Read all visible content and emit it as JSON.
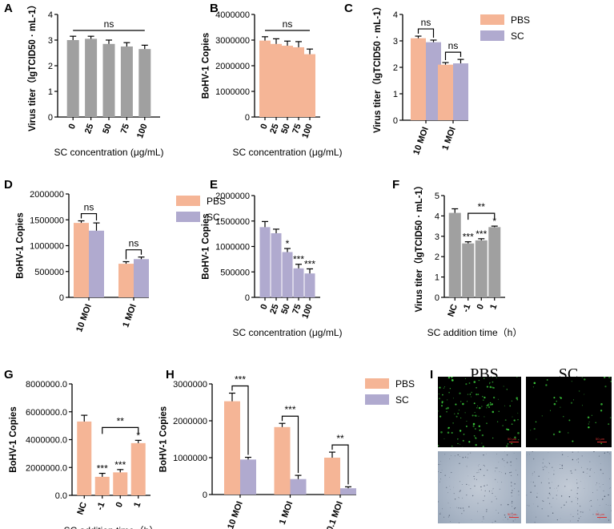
{
  "chart_data": [
    {
      "panel": "A",
      "type": "bar",
      "ylabel": "Virus titer（lgTCID50 · mL-1）",
      "xlabel": "SC concentration (μg/mL)",
      "categories": [
        "0",
        "25",
        "50",
        "75",
        "100"
      ],
      "values": [
        3.0,
        3.05,
        2.85,
        2.75,
        2.65
      ],
      "errors": [
        0.15,
        0.1,
        0.15,
        0.15,
        0.15
      ],
      "ylim": [
        0,
        4
      ],
      "yticks": [
        "0",
        "1",
        "2",
        "3",
        "4"
      ],
      "color": "#a0a0a0",
      "annotations": [
        {
          "text": "ns",
          "from": 0,
          "to": 4
        }
      ]
    },
    {
      "panel": "B",
      "type": "bar",
      "ylabel": "BoHV-1 Copies",
      "xlabel": "SC concentration (μg/mL)",
      "categories": [
        "0",
        "25",
        "50",
        "75",
        "100"
      ],
      "values": [
        2980000,
        2850000,
        2780000,
        2720000,
        2450000
      ],
      "errors": [
        150000,
        200000,
        180000,
        220000,
        200000
      ],
      "ylim": [
        0,
        4000000
      ],
      "yticks": [
        "0",
        "1000000",
        "2000000",
        "3000000",
        "4000000"
      ],
      "color": "#f5b596",
      "annotations": [
        {
          "text": "ns",
          "from": 0,
          "to": 4
        }
      ]
    },
    {
      "panel": "C",
      "type": "bar",
      "ylabel": "Virus titer（lgTCID50 · mL-1）",
      "categories": [
        "10 MOI",
        "1 MOI"
      ],
      "series": [
        {
          "name": "PBS",
          "color": "#f5b596",
          "values": [
            3.1,
            2.1
          ],
          "errors": [
            0.08,
            0.08
          ]
        },
        {
          "name": "SC",
          "color": "#b0aacf",
          "values": [
            2.95,
            2.15
          ],
          "errors": [
            0.08,
            0.15
          ]
        }
      ],
      "ylim": [
        0,
        4
      ],
      "yticks": [
        "0",
        "1",
        "2",
        "3",
        "4"
      ],
      "annotations": [
        {
          "text": "ns",
          "group": 0
        },
        {
          "text": "ns",
          "group": 1
        }
      ]
    },
    {
      "panel": "D",
      "type": "bar",
      "ylabel": "BoHV-1 Copies",
      "categories": [
        "10 MOI",
        "1 MOI"
      ],
      "series": [
        {
          "name": "PBS",
          "color": "#f5b596",
          "values": [
            1440000,
            650000
          ],
          "errors": [
            40000,
            40000
          ]
        },
        {
          "name": "SC",
          "color": "#b0aacf",
          "values": [
            1290000,
            740000
          ],
          "errors": [
            150000,
            40000
          ]
        }
      ],
      "ylim": [
        0,
        2000000
      ],
      "yticks": [
        "0",
        "500000",
        "1000000",
        "1500000",
        "2000000"
      ],
      "annotations": [
        {
          "text": "ns",
          "group": 0
        },
        {
          "text": "ns",
          "group": 1
        }
      ]
    },
    {
      "panel": "E",
      "type": "bar",
      "ylabel": "BoHV-1 Copies",
      "xlabel": "SC concentration (μg/mL)",
      "categories": [
        "0",
        "25",
        "50",
        "75",
        "100"
      ],
      "values": [
        1380000,
        1260000,
        890000,
        570000,
        470000
      ],
      "errors": [
        110000,
        80000,
        70000,
        80000,
        90000
      ],
      "stars": [
        "",
        "",
        "*",
        "***",
        "***"
      ],
      "ylim": [
        0,
        2000000
      ],
      "yticks": [
        "0",
        "500000",
        "1000000",
        "1500000",
        "2000000"
      ],
      "color": "#b0aacf"
    },
    {
      "panel": "F",
      "type": "bar",
      "ylabel": "Virus titer（lgTCID50 · mL-1）",
      "xlabel": "SC addition time（h）",
      "categories": [
        "NC",
        "-1",
        "0",
        "1"
      ],
      "values": [
        4.15,
        2.65,
        2.8,
        3.45
      ],
      "errors": [
        0.2,
        0.08,
        0.08,
        0.05
      ],
      "stars": [
        "",
        "***",
        "***",
        "*"
      ],
      "ylim": [
        0,
        5
      ],
      "yticks": [
        "0",
        "1",
        "2",
        "3",
        "4",
        "5"
      ],
      "color": "#a0a0a0",
      "annotations": [
        {
          "text": "**",
          "from": 1,
          "to": 3
        }
      ]
    },
    {
      "panel": "G",
      "type": "bar",
      "ylabel": "BoHV-1 Copies",
      "xlabel": "SC addition time（h）",
      "categories": [
        "NC",
        "-1",
        "0",
        "1"
      ],
      "values": [
        5300000,
        1330000,
        1650000,
        3750000
      ],
      "errors": [
        450000,
        250000,
        200000,
        200000
      ],
      "stars": [
        "",
        "***",
        "***",
        "*"
      ],
      "ylim": [
        0,
        8000000
      ],
      "yticks": [
        "0.0",
        "2000000.0",
        "4000000.0",
        "6000000.0",
        "8000000.0"
      ],
      "color": "#f5b596",
      "annotations": [
        {
          "text": "**",
          "from": 1,
          "to": 3
        }
      ]
    },
    {
      "panel": "H",
      "type": "bar",
      "ylabel": "BoHV-1 Copies",
      "categories": [
        "10 MOI",
        "1 MOI",
        "0.1 MOI"
      ],
      "series": [
        {
          "name": "PBS",
          "color": "#f5b596",
          "values": [
            2530000,
            1830000,
            1000000
          ],
          "errors": [
            220000,
            100000,
            150000
          ]
        },
        {
          "name": "SC",
          "color": "#b0aacf",
          "values": [
            950000,
            420000,
            170000
          ],
          "errors": [
            60000,
            100000,
            40000
          ]
        }
      ],
      "ylim": [
        0,
        3000000
      ],
      "yticks": [
        "0",
        "1000000",
        "2000000",
        "3000000"
      ],
      "annotations": [
        {
          "text": "***",
          "group": 0
        },
        {
          "text": "***",
          "group": 1
        },
        {
          "text": "**",
          "group": 2
        }
      ]
    }
  ],
  "micrographs": {
    "panel": "I",
    "labels": [
      "PBS",
      "SC"
    ],
    "scale_text": "50 μm"
  }
}
